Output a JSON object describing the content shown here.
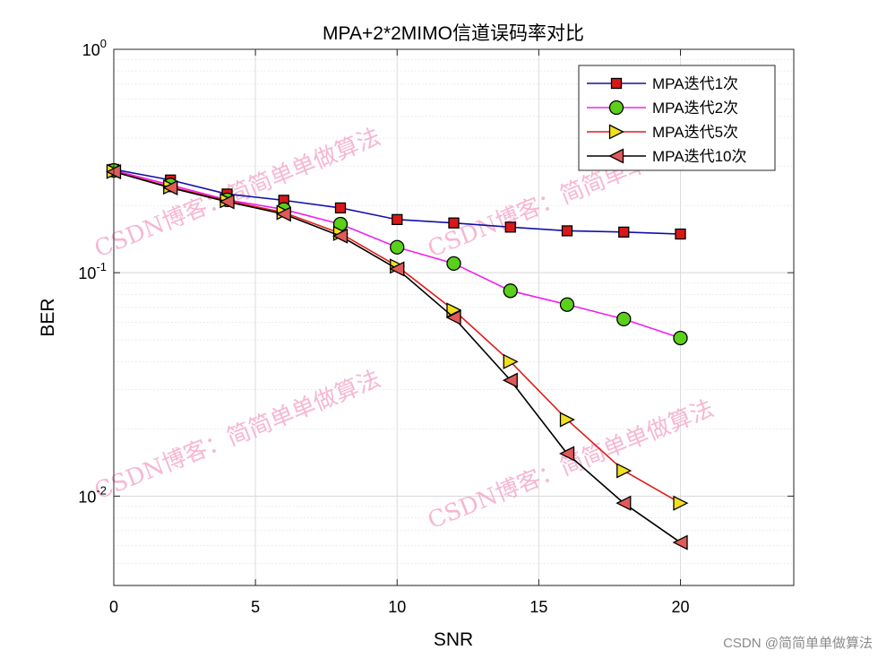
{
  "chart_data": {
    "type": "line",
    "title": "MPA+2*2MIMO信道误码率对比",
    "xlabel": "SNR",
    "ylabel": "BER",
    "xlim": [
      0,
      24
    ],
    "ylim_log10": [
      -2.4,
      0
    ],
    "yscale": "log",
    "grid": true,
    "legend_position": "top-right",
    "x": [
      0,
      2,
      4,
      6,
      8,
      10,
      12,
      14,
      16,
      18,
      20
    ],
    "x_ticks": [
      0,
      5,
      10,
      15,
      20
    ],
    "x_tick_labels": [
      "0",
      "5",
      "10",
      "15",
      "20"
    ],
    "y_ticks": [
      {
        "value": 1,
        "base": "10",
        "exp": "0"
      },
      {
        "value": 0.1,
        "base": "10",
        "exp": "-1"
      },
      {
        "value": 0.01,
        "base": "10",
        "exp": "-2"
      }
    ],
    "series": [
      {
        "name": "MPA迭代1次",
        "color": "#1010a8",
        "marker": "square",
        "marker_color": "#d81818",
        "values": [
          0.29,
          0.26,
          0.225,
          0.211,
          0.195,
          0.173,
          0.167,
          0.16,
          0.154,
          0.152,
          0.149
        ]
      },
      {
        "name": "MPA迭代2次",
        "color": "#f020f0",
        "marker": "circle",
        "marker_color": "#5ad01a",
        "values": [
          0.287,
          0.247,
          0.212,
          0.192,
          0.165,
          0.13,
          0.11,
          0.083,
          0.072,
          0.062,
          0.051
        ]
      },
      {
        "name": "MPA迭代5次",
        "color": "#e01c1c",
        "marker": "triangle-right",
        "marker_color": "#f0e020",
        "values": [
          0.284,
          0.242,
          0.21,
          0.186,
          0.15,
          0.107,
          0.068,
          0.04,
          0.022,
          0.013,
          0.0093
        ]
      },
      {
        "name": "MPA迭代10次",
        "color": "#000000",
        "marker": "triangle-left",
        "marker_color": "#e05a5a",
        "values": [
          0.283,
          0.24,
          0.208,
          0.183,
          0.146,
          0.104,
          0.063,
          0.033,
          0.0155,
          0.0093,
          0.0062
        ]
      }
    ]
  },
  "watermark": {
    "text": "CSDN博客：简简单单做算法",
    "footer": "CSDN @简简单单做算法"
  }
}
